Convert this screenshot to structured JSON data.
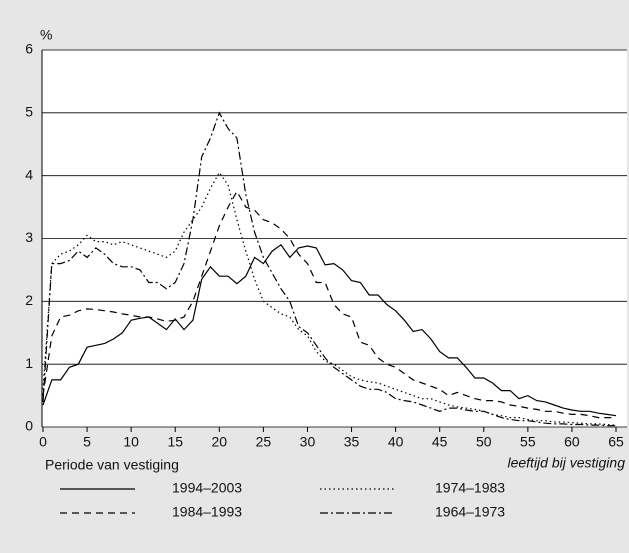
{
  "chart_data": {
    "type": "line",
    "y_label": "%",
    "x_label": "leeftijd bij vestiging",
    "legend_title": "Periode van vestiging",
    "x": [
      0,
      1,
      2,
      3,
      4,
      5,
      6,
      7,
      8,
      9,
      10,
      11,
      12,
      13,
      14,
      15,
      16,
      17,
      18,
      19,
      20,
      21,
      22,
      23,
      24,
      25,
      26,
      27,
      28,
      29,
      30,
      31,
      32,
      33,
      34,
      35,
      36,
      37,
      38,
      39,
      40,
      41,
      42,
      43,
      44,
      45,
      46,
      47,
      48,
      49,
      50,
      51,
      52,
      53,
      54,
      55,
      56,
      57,
      58,
      59,
      60,
      61,
      62,
      63,
      64,
      65
    ],
    "series": [
      {
        "name": "1994–2003",
        "color": "#000000",
        "linestyle": "solid",
        "values": [
          0.35,
          0.75,
          0.75,
          0.95,
          1.0,
          1.27,
          1.3,
          1.33,
          1.4,
          1.5,
          1.7,
          1.73,
          1.75,
          1.65,
          1.55,
          1.72,
          1.55,
          1.7,
          2.35,
          2.55,
          2.4,
          2.4,
          2.28,
          2.4,
          2.7,
          2.6,
          2.8,
          2.9,
          2.7,
          2.85,
          2.88,
          2.85,
          2.58,
          2.6,
          2.5,
          2.33,
          2.3,
          2.1,
          2.1,
          1.95,
          1.85,
          1.7,
          1.52,
          1.55,
          1.4,
          1.2,
          1.1,
          1.1,
          0.95,
          0.78,
          0.78,
          0.7,
          0.58,
          0.58,
          0.45,
          0.5,
          0.42,
          0.4,
          0.35,
          0.3,
          0.27,
          0.25,
          0.25,
          0.22,
          0.2,
          0.18
        ]
      },
      {
        "name": "1974–1983",
        "color": "#000000",
        "linestyle": "dotted",
        "values": [
          0.6,
          2.6,
          2.75,
          2.8,
          2.9,
          3.05,
          2.95,
          2.95,
          2.9,
          2.95,
          2.9,
          2.85,
          2.8,
          2.75,
          2.7,
          2.8,
          3.1,
          3.3,
          3.5,
          3.8,
          4.05,
          3.85,
          3.3,
          2.8,
          2.35,
          2.0,
          1.9,
          1.8,
          1.75,
          1.55,
          1.45,
          1.2,
          1.05,
          1.0,
          0.9,
          0.8,
          0.75,
          0.72,
          0.7,
          0.65,
          0.6,
          0.55,
          0.5,
          0.45,
          0.45,
          0.4,
          0.35,
          0.32,
          0.3,
          0.28,
          0.25,
          0.2,
          0.18,
          0.15,
          0.15,
          0.12,
          0.1,
          0.1,
          0.08,
          0.08,
          0.07,
          0.06,
          0.05,
          0.05,
          0.04,
          0.03
        ]
      },
      {
        "name": "1984–1993",
        "color": "#000000",
        "linestyle": "dashed",
        "values": [
          0.5,
          1.45,
          1.75,
          1.78,
          1.85,
          1.88,
          1.87,
          1.85,
          1.83,
          1.8,
          1.78,
          1.75,
          1.75,
          1.72,
          1.68,
          1.7,
          1.75,
          2.0,
          2.4,
          2.8,
          3.2,
          3.5,
          3.75,
          3.5,
          3.45,
          3.3,
          3.25,
          3.15,
          3.0,
          2.75,
          2.6,
          2.3,
          2.3,
          1.95,
          1.8,
          1.75,
          1.35,
          1.3,
          1.1,
          1.0,
          0.95,
          0.85,
          0.75,
          0.7,
          0.65,
          0.6,
          0.5,
          0.55,
          0.5,
          0.45,
          0.42,
          0.42,
          0.4,
          0.35,
          0.33,
          0.3,
          0.28,
          0.25,
          0.25,
          0.22,
          0.2,
          0.2,
          0.18,
          0.15,
          0.15,
          0.15
        ]
      },
      {
        "name": "1964–1973",
        "color": "#000000",
        "linestyle": "dashdot",
        "values": [
          0.4,
          2.6,
          2.6,
          2.65,
          2.8,
          2.7,
          2.85,
          2.75,
          2.6,
          2.55,
          2.55,
          2.5,
          2.3,
          2.3,
          2.2,
          2.3,
          2.6,
          3.3,
          4.3,
          4.6,
          5.0,
          4.75,
          4.6,
          3.7,
          3.1,
          2.7,
          2.45,
          2.2,
          2.0,
          1.6,
          1.5,
          1.3,
          1.1,
          0.95,
          0.85,
          0.75,
          0.65,
          0.6,
          0.6,
          0.55,
          0.45,
          0.42,
          0.4,
          0.35,
          0.3,
          0.25,
          0.3,
          0.3,
          0.27,
          0.25,
          0.25,
          0.2,
          0.15,
          0.12,
          0.1,
          0.1,
          0.08,
          0.06,
          0.05,
          0.05,
          0.04,
          0.04,
          0.03,
          0.03,
          0.02,
          0.02
        ]
      }
    ],
    "xlim": [
      0,
      65
    ],
    "ylim": [
      0,
      6
    ],
    "xticks": [
      0,
      5,
      10,
      15,
      20,
      25,
      30,
      35,
      40,
      45,
      50,
      55,
      60,
      65
    ],
    "yticks": [
      0,
      1,
      2,
      3,
      4,
      5,
      6
    ],
    "grid": true
  }
}
